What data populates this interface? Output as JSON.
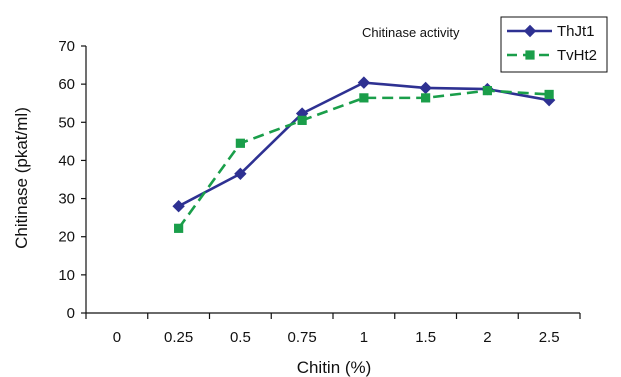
{
  "chart_data": {
    "type": "line",
    "title": "",
    "annotation": "Chitinase activity",
    "xlabel": "Chitin (%)",
    "ylabel": "Chitinase (pkat/ml)",
    "categories": [
      "0",
      "0.25",
      "0.5",
      "0.75",
      "1",
      "1.5",
      "2",
      "2.5"
    ],
    "ylim": [
      0,
      70
    ],
    "yticks": [
      0,
      10,
      20,
      30,
      40,
      50,
      60,
      70
    ],
    "grid": false,
    "legend_position": "top-right",
    "series": [
      {
        "name": "ThJt1",
        "color": "#2e3192",
        "marker": "diamond",
        "line_style": "solid",
        "values": [
          null,
          28,
          36.5,
          52.3,
          60.4,
          59,
          58.7,
          55.8
        ]
      },
      {
        "name": "TvHt2",
        "color": "#1a9e4a",
        "marker": "square",
        "line_style": "dashed",
        "values": [
          null,
          22.2,
          44.5,
          50.5,
          56.4,
          56.4,
          58.3,
          57.3
        ]
      }
    ]
  }
}
